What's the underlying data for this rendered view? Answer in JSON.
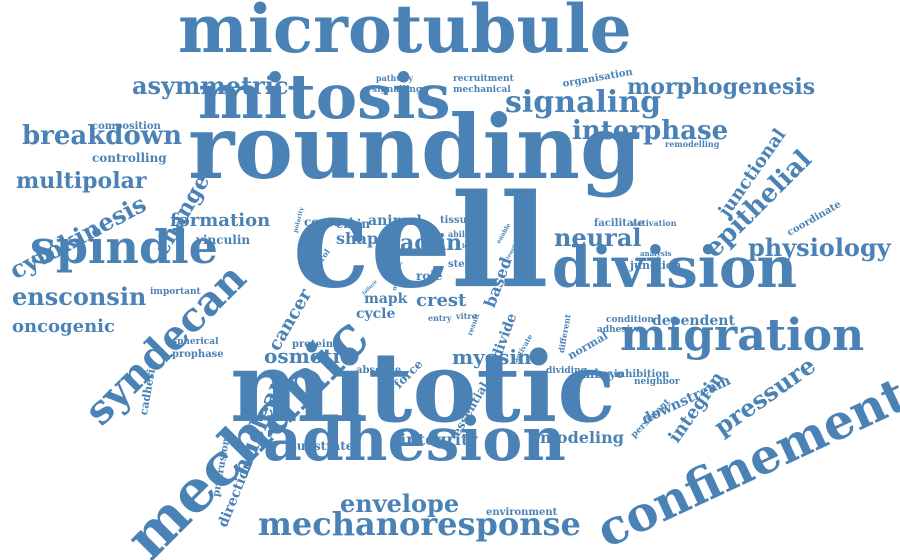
{
  "accent_color": "#4a82b5",
  "background_color": "#ffffff",
  "words": [
    {
      "id": "cell",
      "text": "cell"
    },
    {
      "id": "rounding",
      "text": "rounding"
    },
    {
      "id": "mitotic",
      "text": "mitotic"
    },
    {
      "id": "microtubule",
      "text": "microtubule"
    },
    {
      "id": "mitosis",
      "text": "mitosis"
    },
    {
      "id": "adhesion",
      "text": "adhesion"
    },
    {
      "id": "mechanic",
      "text": "mechanic"
    },
    {
      "id": "division",
      "text": "division"
    },
    {
      "id": "confinement",
      "text": "confinement"
    },
    {
      "id": "spindle",
      "text": "spindle"
    },
    {
      "id": "migration",
      "text": "migration"
    },
    {
      "id": "syndecan",
      "text": "syndecan"
    },
    {
      "id": "mechanoresponse",
      "text": "mechanoresponse"
    },
    {
      "id": "signaling",
      "text": "signaling"
    },
    {
      "id": "asymmetric",
      "text": "asymmetric"
    },
    {
      "id": "breakdown",
      "text": "breakdown"
    },
    {
      "id": "interphase",
      "text": "interphase"
    },
    {
      "id": "ensconsin",
      "text": "ensconsin"
    },
    {
      "id": "multipolar",
      "text": "multipolar"
    },
    {
      "id": "cytokinesis",
      "text": "cytokinesis"
    },
    {
      "id": "physiology",
      "text": "physiology"
    },
    {
      "id": "epithelial",
      "text": "epithelial"
    },
    {
      "id": "pressure",
      "text": "pressure"
    },
    {
      "id": "envelope",
      "text": "envelope"
    },
    {
      "id": "nuclear",
      "text": "nuclear"
    },
    {
      "id": "morphogenesis",
      "text": "morphogenesis"
    },
    {
      "id": "change",
      "text": "change"
    },
    {
      "id": "neural",
      "text": "neural"
    },
    {
      "id": "actin",
      "text": "actin"
    },
    {
      "id": "osmotic",
      "text": "osmotic"
    },
    {
      "id": "oncogenic",
      "text": "oncogenic"
    },
    {
      "id": "myosin",
      "text": "myosin"
    },
    {
      "id": "formation",
      "text": "formation"
    },
    {
      "id": "modeling",
      "text": "modeling"
    },
    {
      "id": "integrity",
      "text": "integrity"
    },
    {
      "id": "cancer",
      "text": "cancer"
    },
    {
      "id": "crest",
      "text": "crest"
    },
    {
      "id": "shape",
      "text": "shape"
    },
    {
      "id": "animal",
      "text": "animal"
    },
    {
      "id": "integrin",
      "text": "integrin"
    },
    {
      "id": "junctional",
      "text": "junctional"
    },
    {
      "id": "based",
      "text": "based"
    },
    {
      "id": "mapk",
      "text": "mapk"
    },
    {
      "id": "cycle",
      "text": "cycle"
    },
    {
      "id": "dependent",
      "text": "dependent"
    },
    {
      "id": "directional",
      "text": "directional"
    },
    {
      "id": "downstream",
      "text": "downstream"
    },
    {
      "id": "vinculin",
      "text": "vinculin"
    },
    {
      "id": "composition",
      "text": "composition"
    },
    {
      "id": "controlling",
      "text": "controlling"
    },
    {
      "id": "ezrin",
      "text": "ezrin"
    },
    {
      "id": "contact",
      "text": "contact"
    },
    {
      "id": "force",
      "text": "force"
    },
    {
      "id": "divide",
      "text": "divide"
    },
    {
      "id": "essential",
      "text": "essential"
    },
    {
      "id": "substrate",
      "text": "substrate"
    },
    {
      "id": "protrusion",
      "text": "protrusion"
    },
    {
      "id": "cadherin",
      "text": "cadherin"
    },
    {
      "id": "prophase",
      "text": "prophase"
    },
    {
      "id": "spherical",
      "text": "spherical"
    },
    {
      "id": "important",
      "text": "important"
    },
    {
      "id": "protein",
      "text": "protein"
    },
    {
      "id": "absence",
      "text": "absence"
    },
    {
      "id": "embryo",
      "text": "embryo"
    },
    {
      "id": "inhibition",
      "text": "inhibition"
    },
    {
      "id": "dividing",
      "text": "dividing"
    },
    {
      "id": "normal",
      "text": "normal"
    },
    {
      "id": "adhesive",
      "text": "adhesive"
    },
    {
      "id": "condition",
      "text": "condition"
    },
    {
      "id": "different",
      "text": "different"
    },
    {
      "id": "neighbor",
      "text": "neighbor"
    },
    {
      "id": "persistent",
      "text": "persistent"
    },
    {
      "id": "coordinate",
      "text": "coordinate"
    },
    {
      "id": "junction",
      "text": "junction"
    },
    {
      "id": "analysis",
      "text": "analysis"
    },
    {
      "id": "facilitate",
      "text": "facilitate"
    },
    {
      "id": "activation",
      "text": "activation"
    },
    {
      "id": "remodelling",
      "text": "remodelling"
    },
    {
      "id": "organisation",
      "text": "organisation"
    },
    {
      "id": "recruitment",
      "text": "recruitment"
    },
    {
      "id": "mechanical",
      "text": "mechanical"
    },
    {
      "id": "pathway",
      "text": "pathway"
    },
    {
      "id": "signalling",
      "text": "signalling"
    },
    {
      "id": "environment",
      "text": "environment"
    },
    {
      "id": "role",
      "text": "role"
    },
    {
      "id": "step",
      "text": "step"
    },
    {
      "id": "tissue",
      "text": "tissue"
    },
    {
      "id": "ability",
      "text": "ability"
    },
    {
      "id": "polarity",
      "text": "polarity"
    },
    {
      "id": "control",
      "text": "control"
    },
    {
      "id": "rasv",
      "text": "rasv"
    },
    {
      "id": "enter",
      "text": "enter"
    },
    {
      "id": "entry",
      "text": "entry"
    },
    {
      "id": "vitro",
      "text": "vitro"
    },
    {
      "id": "result",
      "text": "result"
    },
    {
      "id": "activate",
      "text": "activate"
    },
    {
      "id": "multiple",
      "text": "multiple"
    },
    {
      "id": "failure",
      "text": "failure"
    },
    {
      "id": "enable",
      "text": "enable"
    },
    {
      "id": "tensile",
      "text": "tensile"
    },
    {
      "id": "alter",
      "text": "alter"
    },
    {
      "id": "lead",
      "text": "lead"
    }
  ]
}
